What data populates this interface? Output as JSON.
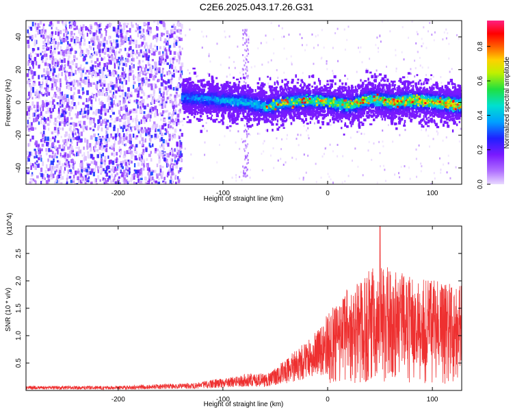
{
  "title": "C2E6.2025.043.17.26.G31",
  "chart_data": [
    {
      "type": "heatmap",
      "title": "C2E6.2025.043.17.26.G31",
      "xlabel": "Height of straight line (km)",
      "ylabel": "Frequency (Hz)",
      "xlim": [
        -288,
        128
      ],
      "ylim": [
        -50,
        50
      ],
      "xticks": [
        -200,
        -100,
        0,
        100
      ],
      "yticks": [
        -40,
        -20,
        0,
        20,
        40
      ],
      "colorbar": {
        "label": "Normalized spectral amplitude",
        "range": [
          0,
          0.95
        ],
        "ticks": [
          "0.0",
          "0.2",
          "0.4",
          "0.6",
          "0.8"
        ],
        "colormap": "rainbow (violet-blue-cyan-green-yellow-red-magenta)"
      },
      "signal_track": {
        "description_points_km_hz": [
          [
            -140,
            4
          ],
          [
            -120,
            3
          ],
          [
            -100,
            2
          ],
          [
            -80,
            1
          ],
          [
            -60,
            -2
          ],
          [
            -40,
            1
          ],
          [
            -20,
            2
          ],
          [
            0,
            1
          ],
          [
            20,
            -1
          ],
          [
            40,
            3
          ],
          [
            60,
            1
          ],
          [
            80,
            2
          ],
          [
            100,
            1
          ],
          [
            128,
            -1
          ]
        ]
      }
    },
    {
      "type": "line",
      "xlabel": "Height of straight line (km)",
      "ylabel": "SNR (10 * v/v)",
      "y_multiplier": "(x10^4)",
      "xlim": [
        -288,
        128
      ],
      "ylim": [
        0,
        3.0
      ],
      "xticks": [
        -200,
        -100,
        0,
        100
      ],
      "yticks": [
        "0.5",
        "1.0",
        "1.5",
        "2.0",
        "2.5"
      ],
      "series": [
        {
          "color": "#ee3030",
          "envelope_points": [
            [
              -288,
              0.05
            ],
            [
              -200,
              0.05
            ],
            [
              -160,
              0.07
            ],
            [
              -130,
              0.08
            ],
            [
              -110,
              0.12
            ],
            [
              -90,
              0.15
            ],
            [
              -70,
              0.2
            ],
            [
              -60,
              0.18
            ],
            [
              -45,
              0.3
            ],
            [
              -30,
              0.45
            ],
            [
              -15,
              0.6
            ],
            [
              0,
              0.85
            ],
            [
              15,
              1.1
            ],
            [
              30,
              1.3
            ],
            [
              50,
              1.4
            ],
            [
              70,
              1.3
            ],
            [
              90,
              1.25
            ],
            [
              110,
              1.2
            ],
            [
              128,
              1.2
            ]
          ],
          "peak": [
            50,
            3.0
          ]
        }
      ]
    }
  ]
}
